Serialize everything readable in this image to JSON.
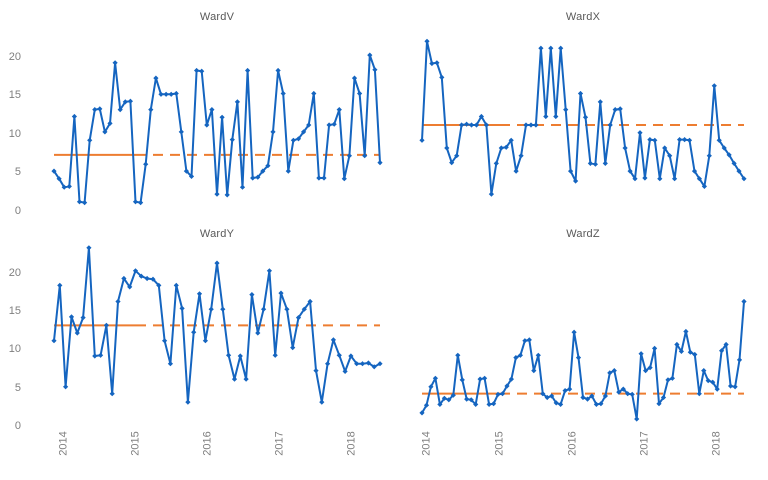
{
  "page": {
    "background": "#ffffff"
  },
  "style": {
    "series_color": "#1565c0",
    "mean_line_color": "#ed7d31",
    "title_color": "#595959",
    "tick_label_color": "#7f7f7f",
    "marker": "diamond"
  },
  "x_axis": {
    "tick_labels": [
      "2014",
      "2015",
      "2016",
      "2017",
      "2018"
    ]
  },
  "y_axis": {
    "top_row_tick_labels": [
      "20",
      "15",
      "10",
      "5",
      "0"
    ],
    "top_row_tick_values": [
      20,
      15,
      10,
      5,
      0
    ],
    "bottom_row_tick_labels": [
      "20",
      "15",
      "10",
      "5",
      "0"
    ],
    "bottom_row_tick_values": [
      20,
      15,
      10,
      5,
      0
    ]
  },
  "chart_data": [
    {
      "type": "line",
      "title": "WardV",
      "mean_line": 7.3,
      "x_range": [
        2013.9,
        2018.4
      ],
      "x_tick_labels": [
        "2014",
        "2015",
        "2016",
        "2017",
        "2018"
      ],
      "ylim": [
        0,
        23.5
      ],
      "grid": false,
      "legend": false,
      "values": [
        5.2,
        4.2,
        3.1,
        3.2,
        12.3,
        1.2,
        1.1,
        9.2,
        13.2,
        13.3,
        10.3,
        11.4,
        19.3,
        13.2,
        14.2,
        14.3,
        1.2,
        1.1,
        6.1,
        13.2,
        17.3,
        15.2,
        15.2,
        15.2,
        15.3,
        10.3,
        5.2,
        4.5,
        18.3,
        18.2,
        11.2,
        13.2,
        2.2,
        12.2,
        2.1,
        9.3,
        14.2,
        3.1,
        18.3,
        4.3,
        4.4,
        5.2,
        5.9,
        10.3,
        18.3,
        15.3,
        5.2,
        9.2,
        9.4,
        10.3,
        11.2,
        15.3,
        4.3,
        4.3,
        11.2,
        11.3,
        13.2,
        4.2,
        7.2,
        17.3,
        15.3,
        7.2,
        20.3,
        18.4,
        6.3
      ]
    },
    {
      "type": "line",
      "title": "WardX",
      "mean_line": 11.2,
      "x_range": [
        2013.9,
        2018.4
      ],
      "x_tick_labels": [
        "2014",
        "2015",
        "2016",
        "2017",
        "2018"
      ],
      "ylim": [
        0,
        23.5
      ],
      "grid": false,
      "legend": false,
      "values": [
        9.2,
        22.1,
        19.2,
        19.3,
        17.4,
        8.2,
        6.3,
        7.2,
        11.2,
        11.3,
        11.2,
        11.2,
        12.3,
        11.2,
        2.2,
        6.2,
        8.2,
        8.3,
        9.2,
        5.2,
        7.2,
        11.2,
        11.2,
        11.2,
        21.2,
        12.3,
        21.2,
        12.3,
        21.2,
        13.2,
        5.2,
        3.9,
        15.3,
        12.2,
        6.2,
        6.1,
        14.2,
        6.2,
        11.2,
        13.2,
        13.3,
        8.2,
        5.2,
        4.2,
        10.2,
        4.3,
        9.3,
        9.2,
        4.2,
        8.2,
        7.2,
        4.2,
        9.3,
        9.3,
        9.2,
        5.2,
        4.2,
        3.2,
        7.2,
        16.3,
        9.2,
        8.2,
        7.3,
        6.2,
        5.2,
        4.2
      ]
    },
    {
      "type": "line",
      "title": "WardY",
      "mean_line": 13.2,
      "x_range": [
        2013.9,
        2018.4
      ],
      "x_tick_labels": [
        "2014",
        "2015",
        "2016",
        "2017",
        "2018"
      ],
      "ylim": [
        0,
        23.5
      ],
      "grid": false,
      "legend": false,
      "values": [
        11.2,
        18.4,
        5.2,
        14.3,
        12.2,
        14.2,
        23.3,
        9.2,
        9.3,
        13.2,
        4.3,
        16.3,
        19.3,
        18.2,
        20.3,
        19.6,
        19.3,
        19.2,
        18.4,
        11.2,
        8.2,
        18.4,
        15.4,
        3.2,
        12.3,
        17.3,
        11.2,
        15.3,
        21.3,
        15.3,
        9.3,
        6.2,
        9.2,
        6.2,
        17.2,
        12.2,
        15.3,
        20.3,
        9.3,
        17.4,
        15.3,
        10.3,
        14.2,
        15.3,
        16.3,
        7.3,
        3.2,
        8.2,
        11.3,
        9.3,
        7.2,
        9.2,
        8.2,
        8.2,
        8.3,
        7.8,
        8.2
      ]
    },
    {
      "type": "line",
      "title": "WardZ",
      "mean_line": 4.3,
      "x_range": [
        2013.9,
        2018.4
      ],
      "x_tick_labels": [
        "2014",
        "2015",
        "2016",
        "2017",
        "2018"
      ],
      "ylim": [
        0,
        23.5
      ],
      "grid": false,
      "legend": false,
      "values": [
        1.8,
        2.8,
        5.2,
        6.3,
        2.9,
        3.7,
        3.5,
        4.1,
        9.3,
        6.1,
        3.6,
        3.5,
        2.9,
        6.2,
        6.3,
        2.9,
        3.0,
        4.2,
        4.3,
        5.3,
        6.2,
        9.0,
        9.3,
        11.2,
        11.3,
        7.3,
        9.3,
        4.3,
        3.8,
        4.0,
        3.1,
        2.9,
        4.7,
        4.9,
        12.3,
        9.0,
        3.8,
        3.6,
        4.0,
        2.9,
        3.0,
        4.0,
        7.0,
        7.3,
        4.5,
        4.9,
        4.3,
        4.2,
        1.0,
        9.5,
        7.3,
        7.7,
        10.2,
        3.0,
        3.8,
        6.1,
        6.3,
        10.7,
        9.8,
        12.4,
        9.7,
        9.4,
        4.3,
        7.3,
        6.0,
        5.8,
        4.9,
        9.9,
        10.7,
        5.3,
        5.2,
        8.7,
        16.3
      ]
    }
  ]
}
